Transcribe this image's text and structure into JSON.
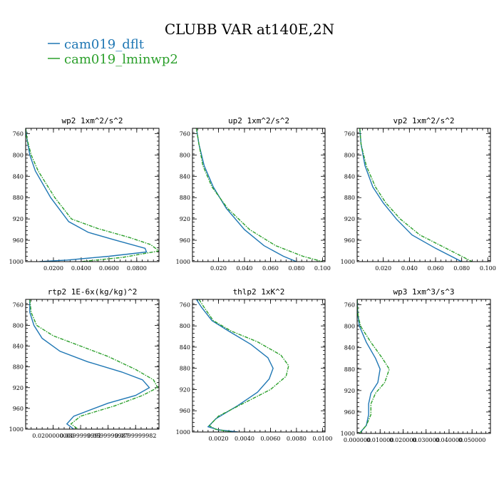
{
  "figure": {
    "title": "CLUBB VAR at140E,2N",
    "legend": [
      {
        "name": "cam019_dflt",
        "label": "cam019_dflt",
        "color": "#1f77b4"
      },
      {
        "name": "cam019_lminwp2",
        "label": "cam019_lminwp2",
        "color": "#2ca02c"
      }
    ]
  },
  "chart_data": [
    {
      "type": "line",
      "title": "wp2  1xm^2/s^2",
      "xlim": [
        0.0,
        0.096
      ],
      "ylim": [
        750,
        1000
      ],
      "xticks": [
        0.02,
        0.04,
        0.06,
        0.08
      ],
      "xtick_labels": [
        "0.0200",
        "0.0400",
        "0.0600",
        "0.0800"
      ],
      "yticks": [
        760,
        800,
        840,
        880,
        920,
        960,
        1000
      ],
      "series": [
        {
          "name": "cam019_dflt",
          "points": [
            [
              0.0,
              750
            ],
            [
              0.001,
              770
            ],
            [
              0.003,
              800
            ],
            [
              0.007,
              830
            ],
            [
              0.018,
              880
            ],
            [
              0.031,
              925
            ],
            [
              0.045,
              945
            ],
            [
              0.065,
              960
            ],
            [
              0.086,
              975
            ],
            [
              0.087,
              982
            ],
            [
              0.06,
              990
            ],
            [
              0.03,
              997
            ],
            [
              0.01,
              1000
            ]
          ]
        },
        {
          "name": "cam019_lminwp2",
          "points": [
            [
              0.0,
              750
            ],
            [
              0.001,
              770
            ],
            [
              0.004,
              800
            ],
            [
              0.009,
              830
            ],
            [
              0.021,
              880
            ],
            [
              0.033,
              920
            ],
            [
              0.052,
              938
            ],
            [
              0.075,
              955
            ],
            [
              0.09,
              968
            ],
            [
              0.096,
              980
            ],
            [
              0.07,
              992
            ],
            [
              0.04,
              1000
            ]
          ]
        }
      ]
    },
    {
      "type": "line",
      "title": "up2  1xm^2/s^2",
      "xlim": [
        0.0,
        0.102
      ],
      "ylim": [
        750,
        1000
      ],
      "xticks": [
        0.02,
        0.04,
        0.06,
        0.08,
        0.1
      ],
      "xtick_labels": [
        "0.020",
        "0.040",
        "0.060",
        "0.080",
        "0.100"
      ],
      "yticks": [
        760,
        800,
        840,
        880,
        920,
        960,
        1000
      ],
      "series": [
        {
          "name": "cam019_dflt",
          "points": [
            [
              0.003,
              750
            ],
            [
              0.005,
              780
            ],
            [
              0.009,
              820
            ],
            [
              0.016,
              860
            ],
            [
              0.026,
              900
            ],
            [
              0.04,
              940
            ],
            [
              0.055,
              970
            ],
            [
              0.07,
              990
            ],
            [
              0.08,
              1000
            ]
          ]
        },
        {
          "name": "cam019_lminwp2",
          "points": [
            [
              0.003,
              750
            ],
            [
              0.005,
              780
            ],
            [
              0.008,
              820
            ],
            [
              0.015,
              860
            ],
            [
              0.027,
              900
            ],
            [
              0.044,
              940
            ],
            [
              0.064,
              970
            ],
            [
              0.085,
              990
            ],
            [
              0.1,
              1000
            ]
          ]
        }
      ]
    },
    {
      "type": "line",
      "title": "vp2  1xm^2/s^2",
      "xlim": [
        0.0,
        0.102
      ],
      "ylim": [
        750,
        1000
      ],
      "xticks": [
        0.02,
        0.04,
        0.06,
        0.08,
        0.1
      ],
      "xtick_labels": [
        "0.020",
        "0.040",
        "0.060",
        "0.080",
        "0.100"
      ],
      "yticks": [
        760,
        800,
        840,
        880,
        920,
        960,
        1000
      ],
      "series": [
        {
          "name": "cam019_dflt",
          "points": [
            [
              0.002,
              750
            ],
            [
              0.003,
              780
            ],
            [
              0.006,
              820
            ],
            [
              0.012,
              860
            ],
            [
              0.02,
              890
            ],
            [
              0.03,
              920
            ],
            [
              0.042,
              950
            ],
            [
              0.06,
              975
            ],
            [
              0.08,
              1000
            ]
          ]
        },
        {
          "name": "cam019_lminwp2",
          "points": [
            [
              0.002,
              750
            ],
            [
              0.003,
              780
            ],
            [
              0.007,
              820
            ],
            [
              0.014,
              860
            ],
            [
              0.022,
              890
            ],
            [
              0.033,
              920
            ],
            [
              0.048,
              950
            ],
            [
              0.068,
              975
            ],
            [
              0.088,
              1000
            ]
          ]
        }
      ]
    },
    {
      "type": "line",
      "title": "rtp2  1E-6x(kg/kg)^2",
      "xlim": [
        0.0,
        0.097
      ],
      "ylim": [
        750,
        1000
      ],
      "xticks": [
        0.02,
        0.04,
        0.06,
        0.08
      ],
      "xtick_labels": [
        "0.0200000000",
        "0.0399999991",
        "0.0599999987",
        "0.0799999982"
      ],
      "yticks": [
        760,
        800,
        840,
        880,
        920,
        960,
        1000
      ],
      "series": [
        {
          "name": "cam019_dflt",
          "points": [
            [
              0.003,
              750
            ],
            [
              0.003,
              775
            ],
            [
              0.006,
              800
            ],
            [
              0.012,
              825
            ],
            [
              0.025,
              850
            ],
            [
              0.045,
              870
            ],
            [
              0.07,
              890
            ],
            [
              0.085,
              905
            ],
            [
              0.09,
              920
            ],
            [
              0.08,
              935
            ],
            [
              0.06,
              950
            ],
            [
              0.035,
              975
            ],
            [
              0.03,
              990
            ],
            [
              0.035,
              1000
            ]
          ]
        },
        {
          "name": "cam019_lminwp2",
          "points": [
            [
              0.003,
              750
            ],
            [
              0.004,
              775
            ],
            [
              0.008,
              800
            ],
            [
              0.02,
              820
            ],
            [
              0.04,
              840
            ],
            [
              0.06,
              860
            ],
            [
              0.08,
              885
            ],
            [
              0.093,
              905
            ],
            [
              0.096,
              920
            ],
            [
              0.085,
              935
            ],
            [
              0.065,
              955
            ],
            [
              0.04,
              975
            ],
            [
              0.033,
              990
            ],
            [
              0.038,
              1000
            ]
          ]
        }
      ]
    },
    {
      "type": "line",
      "title": "thlp2  1xK^2",
      "xlim": [
        0.0,
        0.0102
      ],
      "ylim": [
        750,
        1000
      ],
      "xticks": [
        0.002,
        0.004,
        0.006,
        0.008,
        0.01
      ],
      "xtick_labels": [
        "0.0020",
        "0.0040",
        "0.0060",
        "0.0080",
        "0.0100"
      ],
      "yticks": [
        760,
        800,
        840,
        880,
        920,
        960,
        1000
      ],
      "series": [
        {
          "name": "cam019_dflt",
          "points": [
            [
              0.0003,
              750
            ],
            [
              0.0007,
              765
            ],
            [
              0.0015,
              790
            ],
            [
              0.0028,
              810
            ],
            [
              0.0045,
              835
            ],
            [
              0.0058,
              860
            ],
            [
              0.0062,
              880
            ],
            [
              0.0059,
              900
            ],
            [
              0.005,
              925
            ],
            [
              0.0035,
              950
            ],
            [
              0.0018,
              975
            ],
            [
              0.0012,
              990
            ],
            [
              0.002,
              996
            ],
            [
              0.0035,
              1000
            ]
          ]
        },
        {
          "name": "cam019_lminwp2",
          "points": [
            [
              0.0005,
              750
            ],
            [
              0.0009,
              765
            ],
            [
              0.0016,
              790
            ],
            [
              0.003,
              810
            ],
            [
              0.005,
              830
            ],
            [
              0.0068,
              855
            ],
            [
              0.0074,
              875
            ],
            [
              0.0072,
              895
            ],
            [
              0.006,
              920
            ],
            [
              0.004,
              945
            ],
            [
              0.002,
              970
            ],
            [
              0.0013,
              988
            ],
            [
              0.0018,
              995
            ],
            [
              0.003,
              1000
            ]
          ]
        }
      ]
    },
    {
      "type": "line",
      "title": "wp3  1xm^3/s^3",
      "xlim": [
        0.0,
        0.058
      ],
      "ylim": [
        750,
        1000
      ],
      "xticks": [
        0.0,
        0.01,
        0.02,
        0.03,
        0.04,
        0.05
      ],
      "xtick_labels": [
        "0.000000",
        "0.010000",
        "0.020000",
        "0.030000",
        "0.040000",
        "0.050000"
      ],
      "yticks": [
        760,
        800,
        840,
        880,
        920,
        960,
        1000
      ],
      "series": [
        {
          "name": "cam019_dflt",
          "points": [
            [
              0.0,
              750
            ],
            [
              0.0003,
              780
            ],
            [
              0.001,
              800
            ],
            [
              0.004,
              830
            ],
            [
              0.008,
              860
            ],
            [
              0.01,
              880
            ],
            [
              0.009,
              905
            ],
            [
              0.006,
              925
            ],
            [
              0.005,
              945
            ],
            [
              0.005,
              965
            ],
            [
              0.004,
              985
            ],
            [
              0.001,
              1000
            ]
          ]
        },
        {
          "name": "cam019_lminwp2",
          "points": [
            [
              0.0,
              750
            ],
            [
              0.0004,
              780
            ],
            [
              0.0015,
              800
            ],
            [
              0.006,
              830
            ],
            [
              0.011,
              860
            ],
            [
              0.014,
              880
            ],
            [
              0.012,
              905
            ],
            [
              0.008,
              925
            ],
            [
              0.006,
              945
            ],
            [
              0.006,
              965
            ],
            [
              0.004,
              985
            ],
            [
              0.001,
              1000
            ]
          ]
        }
      ]
    }
  ]
}
